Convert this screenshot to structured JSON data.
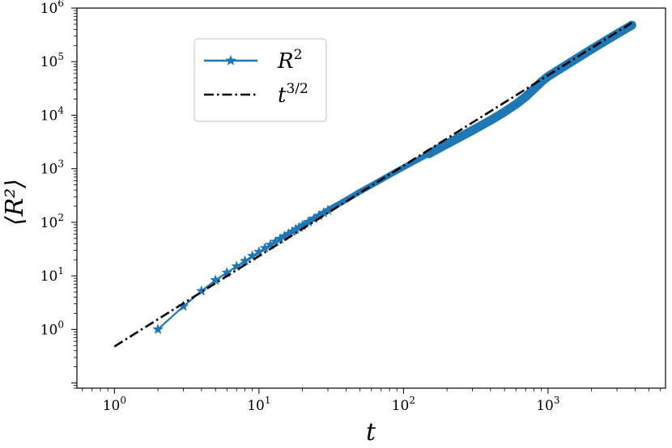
{
  "chart_data": {
    "type": "line",
    "title": "",
    "xlabel": "t",
    "ylabel": "⟨R²⟩",
    "xscale": "log",
    "yscale": "log",
    "xlim": [
      0.55,
      6500
    ],
    "ylim": [
      0.08,
      1000000
    ],
    "x_ticks": [
      {
        "value": 1,
        "base": "10",
        "exp": "0"
      },
      {
        "value": 10,
        "base": "10",
        "exp": "1"
      },
      {
        "value": 100,
        "base": "10",
        "exp": "2"
      },
      {
        "value": 1000,
        "base": "10",
        "exp": "3"
      }
    ],
    "y_ticks": [
      {
        "value": 1,
        "base": "10",
        "exp": "0"
      },
      {
        "value": 10,
        "base": "10",
        "exp": "1"
      },
      {
        "value": 100,
        "base": "10",
        "exp": "2"
      },
      {
        "value": 1000,
        "base": "10",
        "exp": "3"
      },
      {
        "value": 10000,
        "base": "10",
        "exp": "4"
      },
      {
        "value": 100000,
        "base": "10",
        "exp": "5"
      },
      {
        "value": 1000000,
        "base": "10",
        "exp": "6"
      }
    ],
    "grid": false,
    "legend_position": "upper-left",
    "series": [
      {
        "name": "R^2",
        "color": "#1f77b4",
        "style": "solid-star",
        "x": [
          2,
          3,
          4,
          5,
          6,
          7,
          8,
          9,
          10,
          11,
          12,
          13,
          14,
          15,
          16,
          17,
          18,
          19,
          20,
          22,
          24,
          26,
          28,
          30,
          33,
          36,
          40,
          45,
          50,
          60,
          70,
          80,
          100,
          120,
          150,
          200,
          250,
          300,
          400,
          500,
          600,
          700,
          800,
          900,
          1000,
          1200,
          1500,
          2000,
          2500,
          3000,
          3500,
          3800
        ],
        "y": [
          1,
          2.7,
          5.2,
          8.3,
          11.5,
          15,
          19,
          23.5,
          28,
          33,
          38,
          43.5,
          49,
          55,
          61,
          67,
          74,
          80,
          87,
          102,
          117,
          133,
          150,
          168,
          195,
          222,
          262,
          315,
          375,
          490,
          620,
          760,
          1060,
          1380,
          1900,
          2900,
          4000,
          5200,
          8000,
          11500,
          16000,
          22000,
          31000,
          42000,
          53000,
          72000,
          105000,
          170000,
          245000,
          330000,
          420000,
          480000
        ]
      },
      {
        "name": "t^{3/2}",
        "color": "#000000",
        "style": "dash-dot",
        "x": [
          1,
          3800
        ],
        "y": [
          0.48,
          530000
        ]
      }
    ],
    "legend": [
      {
        "base": "R",
        "sup": "2"
      },
      {
        "base": "t",
        "sup": "3/2"
      }
    ]
  }
}
